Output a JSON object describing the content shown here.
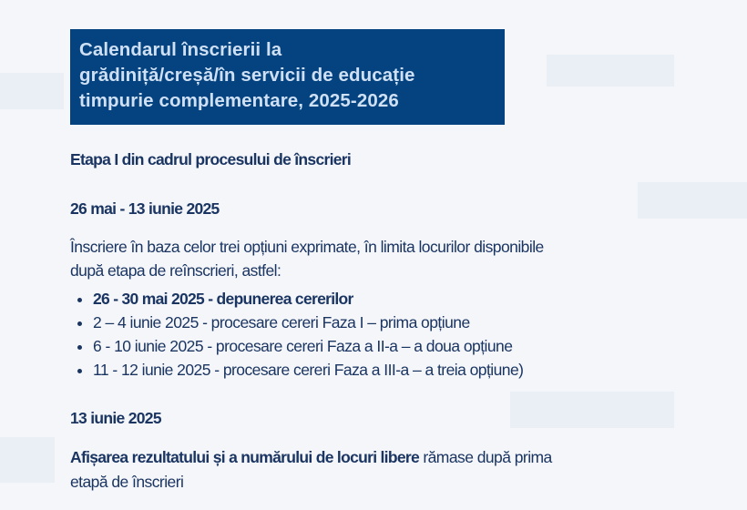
{
  "title": {
    "lines": [
      "Calendarul înscrierii la",
      "grădiniță/creșă/în servicii de educație",
      "timpurie complementare, 2025-2026"
    ]
  },
  "colors": {
    "title_bg": "#04437f",
    "title_text": "#cfe0f4",
    "body_text": "#1b3562"
  },
  "stage_heading": "Etapa I din cadrul procesului de înscrieri",
  "period1": {
    "date": "26 mai - 13 iunie 2025",
    "intro_lines": [
      "Înscriere în baza celor trei opțiuni exprimate, în limita  locurilor disponibile",
      "după etapa de reînscrieri, astfel:"
    ],
    "bullets": [
      {
        "text": "26 - 30 mai 2025 - depunerea cererilor",
        "bold": true
      },
      {
        "text": "2 – 4 iunie 2025  - procesare cereri Faza I – prima opțiune",
        "bold": false
      },
      {
        "text": "6 - 10 iunie 2025 - procesare cereri Faza a II-a – a doua opțiune",
        "bold": false
      },
      {
        "text": "11 - 12 iunie 2025 - procesare cereri Faza a III-a – a treia opțiune)",
        "bold": false
      }
    ]
  },
  "period2": {
    "date": "13 iunie 2025",
    "bold_part": "Afișarea rezultatului și a numărului de locuri libere",
    "rest_line1": " rămase după prima",
    "line2": "etapă de înscrieri"
  }
}
